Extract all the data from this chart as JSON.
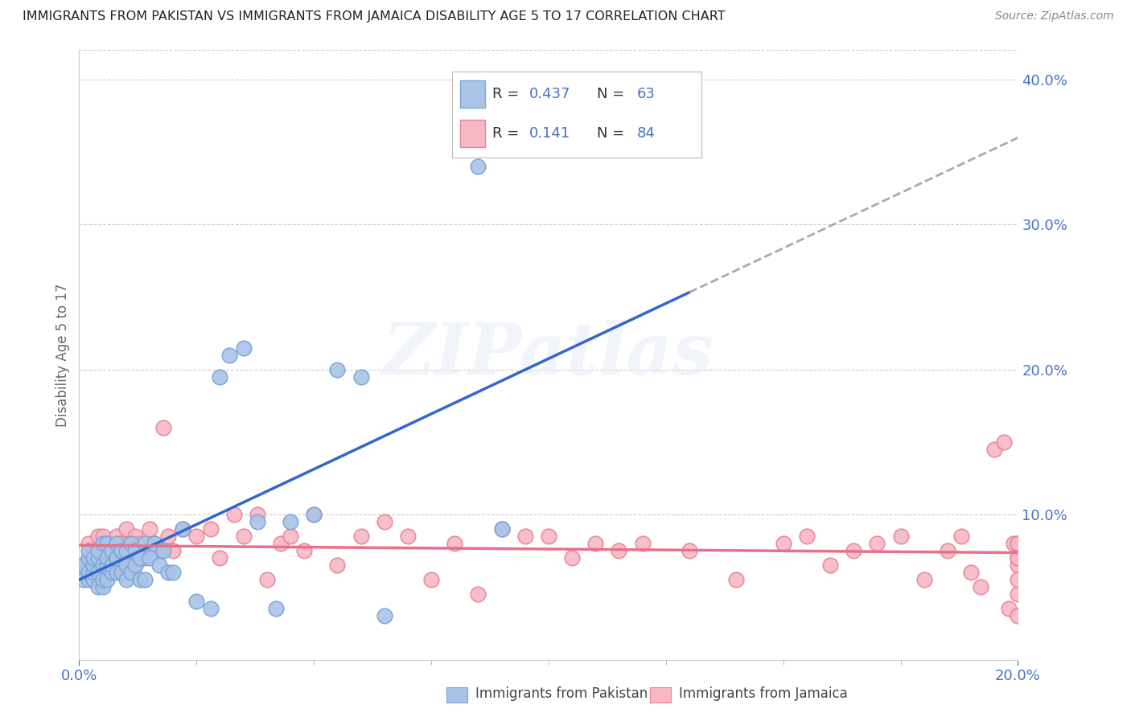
{
  "title": "IMMIGRANTS FROM PAKISTAN VS IMMIGRANTS FROM JAMAICA DISABILITY AGE 5 TO 17 CORRELATION CHART",
  "source": "Source: ZipAtlas.com",
  "ylabel": "Disability Age 5 to 17",
  "xlim": [
    0.0,
    0.2
  ],
  "ylim": [
    0.0,
    0.42
  ],
  "xtick_labels": [
    "0.0%",
    "20.0%"
  ],
  "xtick_positions": [
    0.0,
    0.2
  ],
  "yticks_right": [
    0.1,
    0.2,
    0.3,
    0.4
  ],
  "pakistan_color": "#aac4e8",
  "pakistan_edge": "#7aa6d6",
  "jamaica_color": "#f7b8c4",
  "jamaica_edge": "#e8849a",
  "pakistan_R": "0.437",
  "pakistan_N": "63",
  "jamaica_R": "0.141",
  "jamaica_N": "84",
  "trend_pakistan_color": "#3366CC",
  "trend_jamaica_color": "#E8708A",
  "trend_dashed_color": "#aaaaaa",
  "watermark_text": "ZIPatlas",
  "background_color": "#ffffff",
  "axis_tick_color": "#4472C4",
  "legend_text_color": "#333333",
  "legend_R_val_color": "#4472C4",
  "legend_N_val_color": "#4472C4",
  "pakistan_trend_end_solid": 0.13,
  "pakistan_x": [
    0.001,
    0.001,
    0.001,
    0.002,
    0.002,
    0.002,
    0.002,
    0.003,
    0.003,
    0.003,
    0.003,
    0.004,
    0.004,
    0.004,
    0.004,
    0.005,
    0.005,
    0.005,
    0.005,
    0.006,
    0.006,
    0.006,
    0.006,
    0.007,
    0.007,
    0.007,
    0.008,
    0.008,
    0.008,
    0.009,
    0.009,
    0.01,
    0.01,
    0.01,
    0.011,
    0.011,
    0.012,
    0.012,
    0.013,
    0.013,
    0.014,
    0.014,
    0.015,
    0.016,
    0.017,
    0.018,
    0.019,
    0.02,
    0.022,
    0.025,
    0.028,
    0.03,
    0.032,
    0.035,
    0.038,
    0.042,
    0.045,
    0.05,
    0.055,
    0.06,
    0.065,
    0.085,
    0.09
  ],
  "pakistan_y": [
    0.06,
    0.065,
    0.055,
    0.055,
    0.06,
    0.07,
    0.075,
    0.055,
    0.06,
    0.065,
    0.07,
    0.05,
    0.06,
    0.07,
    0.075,
    0.05,
    0.055,
    0.065,
    0.08,
    0.055,
    0.065,
    0.07,
    0.08,
    0.06,
    0.065,
    0.075,
    0.06,
    0.07,
    0.08,
    0.06,
    0.075,
    0.055,
    0.065,
    0.075,
    0.06,
    0.08,
    0.065,
    0.075,
    0.055,
    0.07,
    0.055,
    0.08,
    0.07,
    0.08,
    0.065,
    0.075,
    0.06,
    0.06,
    0.09,
    0.04,
    0.035,
    0.195,
    0.21,
    0.215,
    0.095,
    0.035,
    0.095,
    0.1,
    0.2,
    0.195,
    0.03,
    0.34,
    0.09
  ],
  "jamaica_x": [
    0.001,
    0.002,
    0.002,
    0.003,
    0.003,
    0.004,
    0.004,
    0.005,
    0.005,
    0.005,
    0.006,
    0.006,
    0.007,
    0.007,
    0.008,
    0.008,
    0.009,
    0.009,
    0.01,
    0.01,
    0.011,
    0.011,
    0.012,
    0.012,
    0.013,
    0.013,
    0.014,
    0.015,
    0.016,
    0.017,
    0.018,
    0.019,
    0.02,
    0.022,
    0.025,
    0.028,
    0.03,
    0.033,
    0.035,
    0.038,
    0.04,
    0.043,
    0.045,
    0.048,
    0.05,
    0.055,
    0.06,
    0.065,
    0.07,
    0.075,
    0.08,
    0.085,
    0.09,
    0.095,
    0.1,
    0.105,
    0.11,
    0.115,
    0.12,
    0.13,
    0.14,
    0.15,
    0.155,
    0.16,
    0.165,
    0.17,
    0.175,
    0.18,
    0.185,
    0.188,
    0.19,
    0.192,
    0.195,
    0.197,
    0.198,
    0.199,
    0.2,
    0.2,
    0.2,
    0.2,
    0.2,
    0.2,
    0.2,
    0.2
  ],
  "jamaica_y": [
    0.065,
    0.07,
    0.08,
    0.065,
    0.075,
    0.06,
    0.085,
    0.055,
    0.07,
    0.085,
    0.065,
    0.08,
    0.06,
    0.08,
    0.07,
    0.085,
    0.065,
    0.08,
    0.06,
    0.09,
    0.07,
    0.08,
    0.065,
    0.085,
    0.07,
    0.08,
    0.07,
    0.09,
    0.08,
    0.075,
    0.16,
    0.085,
    0.075,
    0.09,
    0.085,
    0.09,
    0.07,
    0.1,
    0.085,
    0.1,
    0.055,
    0.08,
    0.085,
    0.075,
    0.1,
    0.065,
    0.085,
    0.095,
    0.085,
    0.055,
    0.08,
    0.045,
    0.09,
    0.085,
    0.085,
    0.07,
    0.08,
    0.075,
    0.08,
    0.075,
    0.055,
    0.08,
    0.085,
    0.065,
    0.075,
    0.08,
    0.085,
    0.055,
    0.075,
    0.085,
    0.06,
    0.05,
    0.145,
    0.15,
    0.035,
    0.08,
    0.08,
    0.065,
    0.07,
    0.045,
    0.08,
    0.055,
    0.07,
    0.03
  ]
}
